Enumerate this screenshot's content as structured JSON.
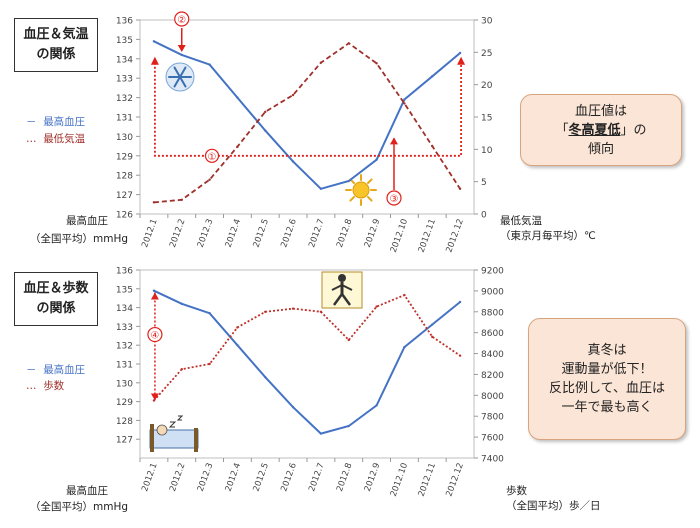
{
  "chart_data": [
    {
      "type": "line",
      "categories": [
        "2012.1",
        "2012.2",
        "2012.3",
        "2012.4",
        "2012.5",
        "2012.6",
        "2012.7",
        "2012.8",
        "2012.9",
        "2012.10",
        "2012.11",
        "2012.12"
      ],
      "series": [
        {
          "name": "最高血圧",
          "axis": "left",
          "color": "#4472C4",
          "style": "solid",
          "values": [
            134.9,
            134.2,
            133.7,
            132.0,
            130.3,
            128.7,
            127.3,
            127.7,
            128.8,
            131.9,
            133.1,
            134.3
          ]
        },
        {
          "name": "最低気温",
          "axis": "right",
          "color": "#A0302A",
          "style": "dashed",
          "values": [
            1.8,
            2.2,
            5.3,
            10.4,
            15.8,
            18.4,
            23.4,
            26.4,
            23.3,
            17.1,
            10.5,
            3.9
          ]
        }
      ],
      "ylim_left": [
        126,
        136
      ],
      "yticks_left": [
        126,
        127,
        128,
        129,
        130,
        131,
        132,
        133,
        134,
        135,
        136
      ],
      "ylim_right": [
        0,
        30
      ],
      "yticks_right": [
        0,
        5,
        10,
        15,
        20,
        25,
        30
      ],
      "ylabel_left": [
        "最高血圧",
        "（全国平均）mmHg"
      ],
      "ylabel_right": [
        "最低気温",
        "（東京月毎平均）℃"
      ],
      "annotations": [
        "①",
        "②",
        "③"
      ]
    },
    {
      "type": "line",
      "categories": [
        "2012.1",
        "2012.2",
        "2012.3",
        "2012.4",
        "2012.5",
        "2012.6",
        "2012.7",
        "2012.8",
        "2012.9",
        "2012.10",
        "2012.11",
        "2012.12"
      ],
      "series": [
        {
          "name": "最高血圧",
          "axis": "left",
          "color": "#4472C4",
          "style": "solid",
          "values": [
            134.9,
            134.2,
            133.7,
            132.0,
            130.3,
            128.7,
            127.3,
            127.7,
            128.8,
            131.9,
            133.1,
            134.3
          ]
        },
        {
          "name": "歩数",
          "axis": "right",
          "color": "#C0302A",
          "style": "dotted",
          "values": [
            7950,
            8250,
            8300,
            8650,
            8800,
            8830,
            8800,
            8530,
            8850,
            8960,
            8560,
            8380
          ]
        }
      ],
      "ylim_left": [
        126,
        136
      ],
      "yticks_left": [
        127,
        128,
        129,
        130,
        131,
        132,
        133,
        134,
        135,
        136
      ],
      "ylim_right": [
        7400,
        9200
      ],
      "yticks_right": [
        7400,
        7600,
        7800,
        8000,
        8200,
        8400,
        8600,
        8800,
        9000,
        9200
      ],
      "ylabel_left": [
        "最高血圧",
        "（全国平均）mmHg"
      ],
      "ylabel_right": [
        "歩数",
        "（全国平均）歩／日"
      ],
      "annotations": [
        "④"
      ]
    }
  ],
  "panel1": {
    "title_line1": "血圧＆気温",
    "title_line2": "の関係",
    "legend": [
      {
        "mark": "－",
        "label": "最高血圧"
      },
      {
        "mark": "…",
        "label": "最低気温"
      }
    ],
    "left_axis_line1": "最高血圧",
    "left_axis_line2": "（全国平均）mmHg",
    "right_axis_line1": "最低気温",
    "right_axis_line2": "（東京月毎平均）℃",
    "callout_line1": "血圧値は",
    "callout_open": "「",
    "callout_emph": "冬高夏低",
    "callout_close": "」の",
    "callout_line3": "傾向"
  },
  "panel2": {
    "title_line1": "血圧＆歩数",
    "title_line2": "の関係",
    "legend": [
      {
        "mark": "－",
        "label": "最高血圧"
      },
      {
        "mark": "…",
        "label": "歩数"
      }
    ],
    "left_axis_line1": "最高血圧",
    "left_axis_line2": "（全国平均）mmHg",
    "right_axis_line1": "歩数",
    "right_axis_line2": "（全国平均）歩／日",
    "callout_line1": "真冬は",
    "callout_line2": "運動量が低下！",
    "callout_line3": "反比例して、血圧は",
    "callout_line4": "一年で最も高く"
  }
}
